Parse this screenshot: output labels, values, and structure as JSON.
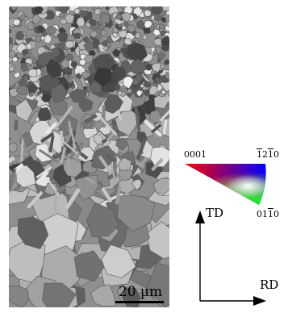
{
  "figure": {
    "scale_bar_label": "20 µm",
    "ipf_key": {
      "corner_top_left": "0001",
      "corner_top_right": {
        "pre": "",
        "bar1": "1",
        "mid": "2",
        "bar2": "1",
        "post": "0"
      },
      "corner_bottom": {
        "pre": "01",
        "bar": "1",
        "post": "0"
      },
      "colors": {
        "top_left": "#ff0000",
        "top_right": "#0000ff",
        "bottom": "#00ff00"
      }
    },
    "axes": {
      "vertical": "TD",
      "horizontal": "RD"
    }
  }
}
